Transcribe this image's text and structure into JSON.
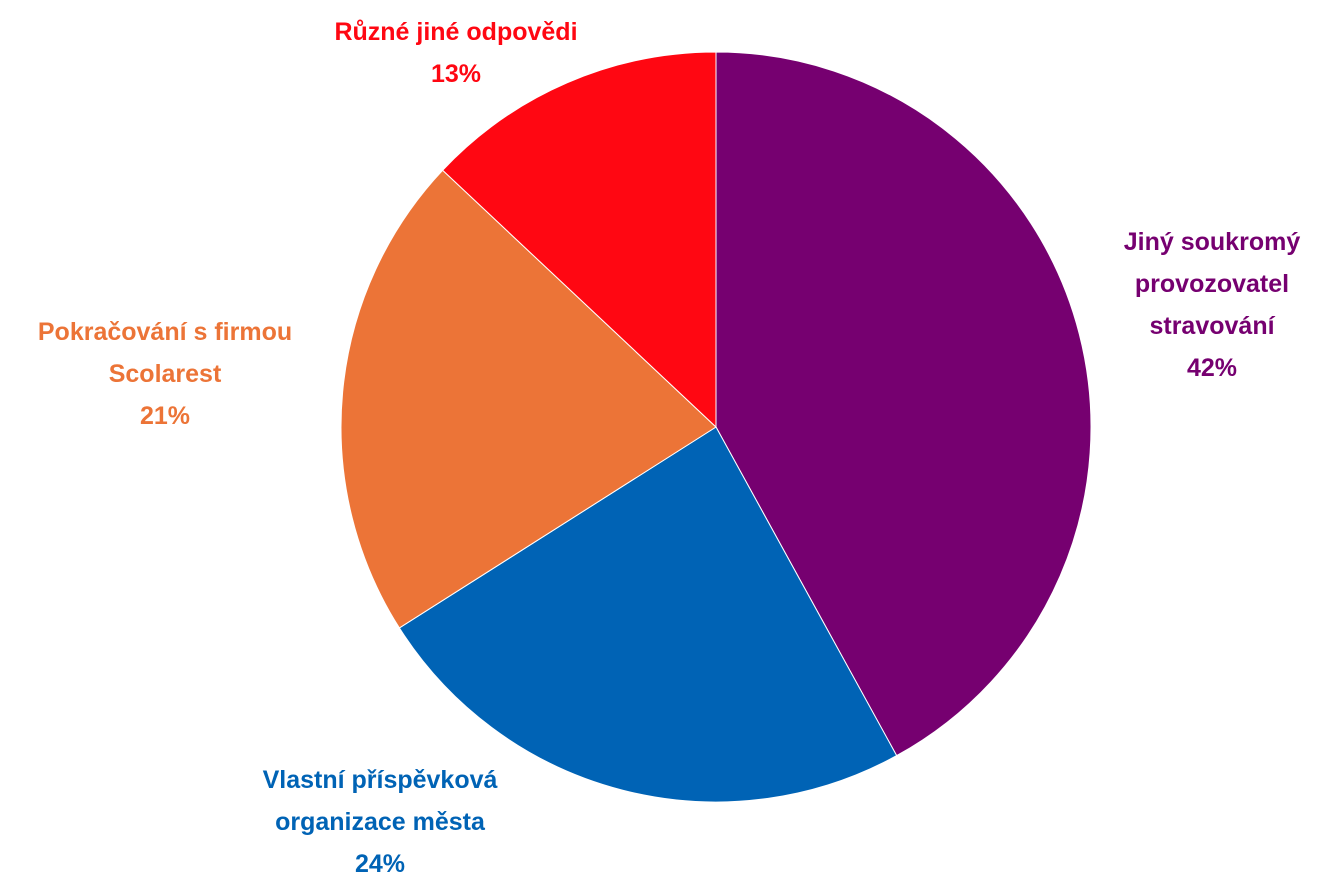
{
  "chart_data": {
    "type": "pie",
    "title": "",
    "slices": [
      {
        "name": "Jiný soukromý provozovatel stravování",
        "label_lines": [
          "Jiný soukromý",
          "provozovatel",
          "stravování"
        ],
        "value": 42,
        "value_label": "42%",
        "color": "#760070"
      },
      {
        "name": "Vlastní příspěvková organizace města",
        "label_lines": [
          "Vlastní příspěvková",
          "organizace města"
        ],
        "value": 24,
        "value_label": "24%",
        "color": "#0063B5"
      },
      {
        "name": "Pokračování s firmou Scolarest",
        "label_lines": [
          "Pokračování s firmou",
          "Scolarest"
        ],
        "value": 21,
        "value_label": "21%",
        "color": "#EC7437"
      },
      {
        "name": "Různé jiné odpovědi",
        "label_lines": [
          "Různé jiné odpovědi"
        ],
        "value": 13,
        "value_label": "13%",
        "color": "#FF0712"
      }
    ],
    "start_angle": "12 o'clock",
    "direction": "clockwise",
    "legend": "none",
    "label_color_matches_slice": true
  }
}
